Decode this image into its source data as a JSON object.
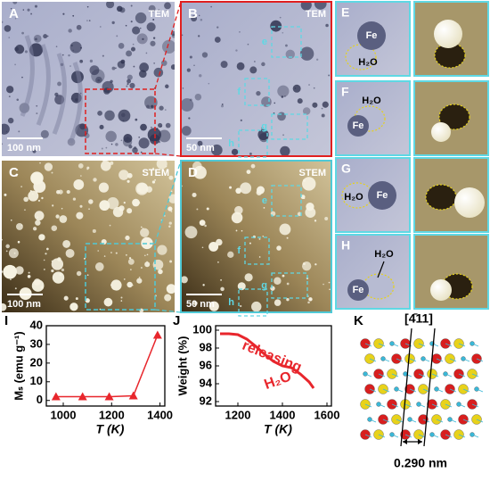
{
  "panels": [
    {
      "label": "A",
      "mode": "TEM",
      "scale": "100 nm"
    },
    {
      "label": "B",
      "mode": "TEM",
      "scale": "50 nm",
      "regions": [
        "e",
        "f",
        "g",
        "h"
      ]
    },
    {
      "label": "C",
      "mode": "STEM",
      "scale": "100 nm"
    },
    {
      "label": "D",
      "mode": "STEM",
      "scale": "50 nm",
      "regions": [
        "e",
        "f",
        "g",
        "h"
      ]
    }
  ],
  "insets": [
    {
      "label": "E",
      "fe": "Fe",
      "water": "H₂O"
    },
    {
      "label": "F",
      "fe": "Fe",
      "water": "H₂O"
    },
    {
      "label": "G",
      "fe": "Fe",
      "water": "H₂O"
    },
    {
      "label": "H",
      "fe": "Fe",
      "water": "H₂O"
    }
  ],
  "structure": {
    "label": "K",
    "direction": "[4̄11]",
    "spacing": "0.290 nm"
  },
  "chart_data": [
    {
      "type": "line",
      "panel": "I",
      "xlabel": "T (K)",
      "ylabel": "Mₛ (emu g⁻¹)",
      "x": [
        970,
        1080,
        1190,
        1290,
        1390
      ],
      "values": [
        2,
        2,
        2,
        2.5,
        35
      ],
      "color": "#e8262c",
      "marker": "triangle",
      "xlim": [
        930,
        1420
      ],
      "xticks": [
        1000,
        1200,
        1400
      ],
      "ylim": [
        -3,
        40
      ],
      "yticks": [
        0,
        10,
        20,
        30,
        40
      ]
    },
    {
      "type": "line",
      "panel": "J",
      "xlabel": "T (K)",
      "ylabel": "Weight (%)",
      "x": [
        1120,
        1160,
        1200,
        1240,
        1280,
        1320,
        1360,
        1400,
        1440,
        1480,
        1520,
        1540
      ],
      "values": [
        99.6,
        99.6,
        99.5,
        99.0,
        98.2,
        97.3,
        96.5,
        96.0,
        95.8,
        95.1,
        94.2,
        93.5
      ],
      "color": "#e8262c",
      "annotations": [
        "releasing",
        "H₂O"
      ],
      "xlim": [
        1100,
        1620
      ],
      "xticks": [
        1200,
        1400,
        1600
      ],
      "ylim": [
        91.5,
        100.5
      ],
      "yticks": [
        92,
        94,
        96,
        98,
        100
      ]
    }
  ]
}
